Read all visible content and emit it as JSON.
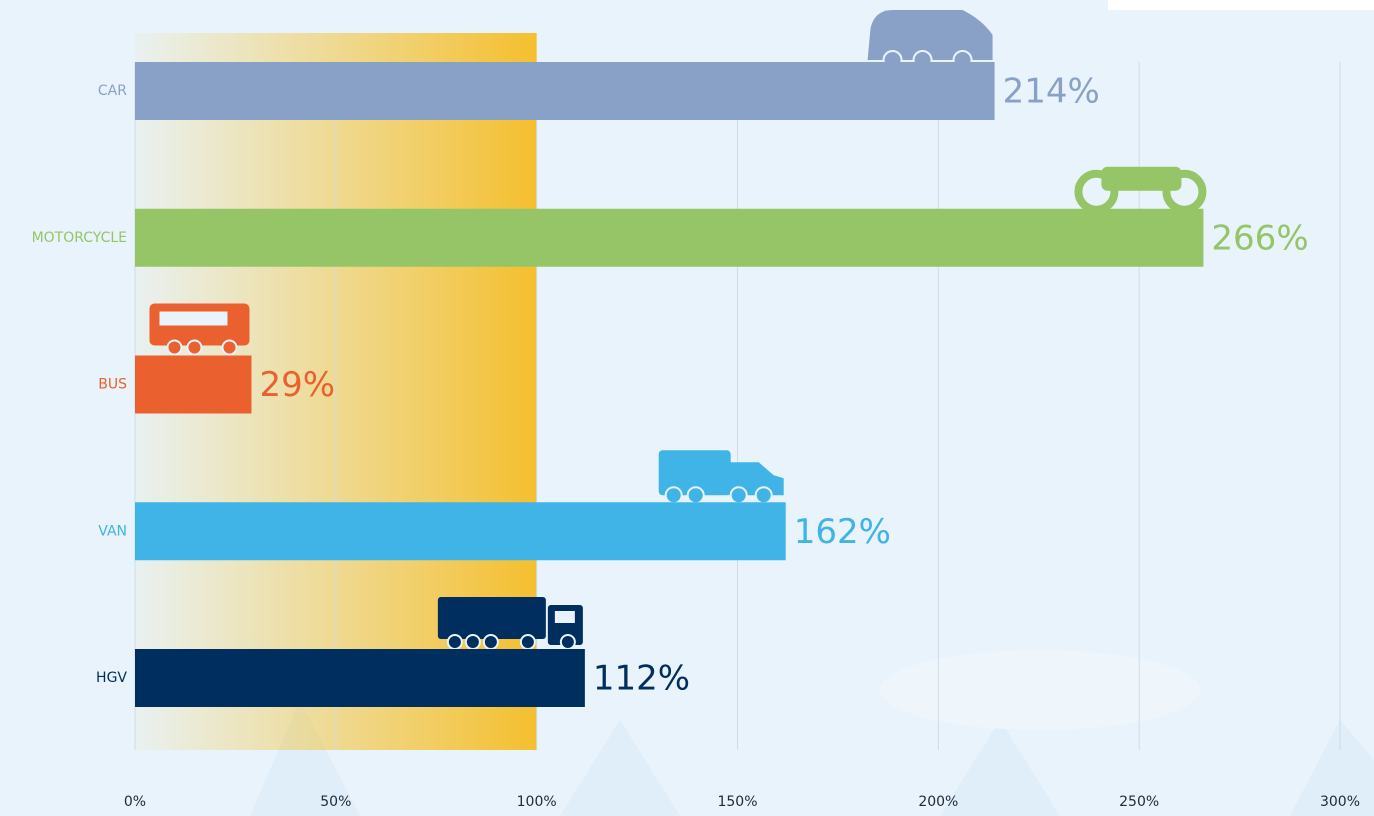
{
  "chart_data": {
    "type": "hbar",
    "categories": [
      "CAR",
      "MOTORCYCLE",
      "BUS",
      "VAN",
      "HGV"
    ],
    "values": [
      214,
      266,
      29,
      162,
      112
    ],
    "value_labels": [
      "214%",
      "266%",
      "29%",
      "162%",
      "112%"
    ],
    "colors": [
      "#8aa1c7",
      "#95c566",
      "#ea602f",
      "#40b4e6",
      "#002f5f"
    ],
    "xlim": [
      0,
      300
    ],
    "xticks": [
      {
        "value": 0,
        "label": "0%"
      },
      {
        "value": 50,
        "label": "50%"
      },
      {
        "value": 100,
        "label": "100%"
      },
      {
        "value": 150,
        "label": "150%"
      },
      {
        "value": 200,
        "label": "200%"
      },
      {
        "value": 250,
        "label": "250%"
      },
      {
        "value": 300,
        "label": "300%"
      }
    ],
    "highlight": [
      0,
      100
    ],
    "grid": true
  }
}
